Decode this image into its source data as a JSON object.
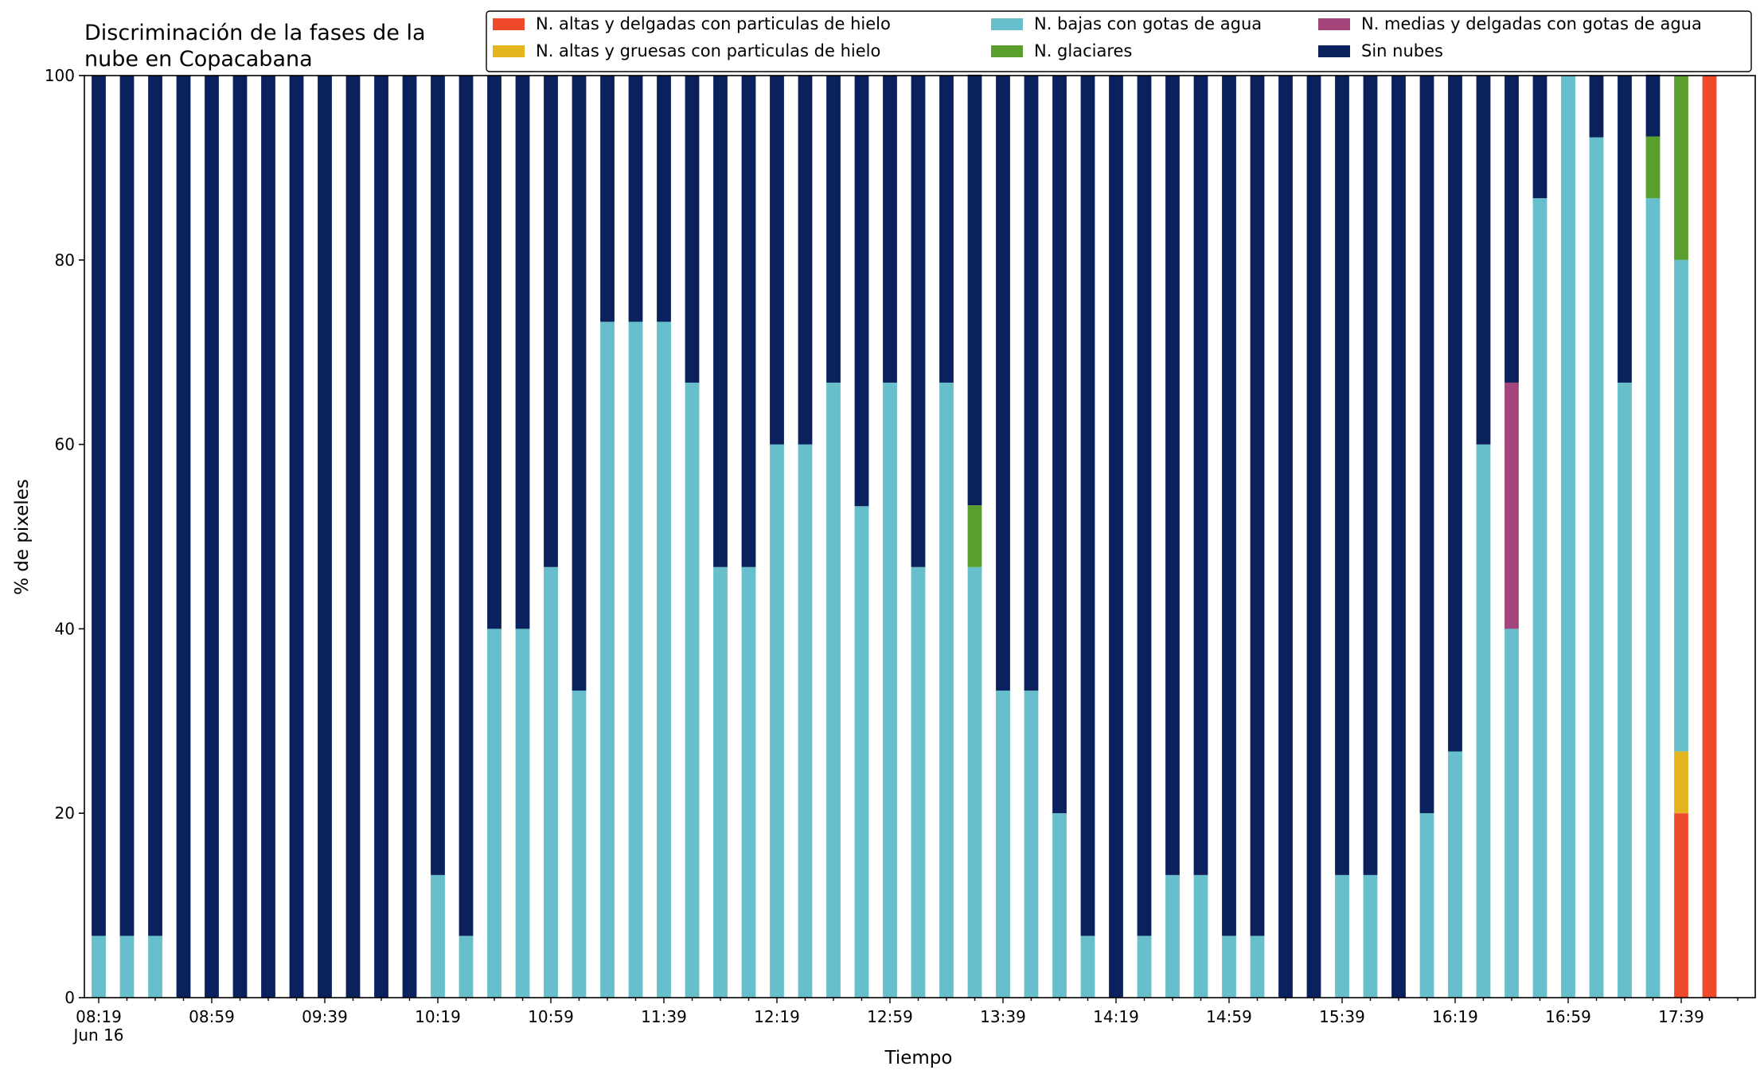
{
  "chart_data": {
    "type": "bar",
    "stacked": true,
    "title": "Discriminación de la fases de la\nnube en Copacabana",
    "xlabel": "Tiempo",
    "ylabel": "% de pixeles",
    "ylim": [
      0,
      100
    ],
    "yticks": [
      0,
      20,
      40,
      60,
      80,
      100
    ],
    "x_tick_labels": [
      "08:19",
      "08:59",
      "09:39",
      "10:19",
      "10:59",
      "11:39",
      "12:19",
      "12:59",
      "13:39",
      "14:19",
      "14:59",
      "15:39",
      "16:19",
      "16:59",
      "17:39"
    ],
    "x_date_label": "Jun 16",
    "grid": false,
    "legend_position": "top-right",
    "categories": [
      "08:19",
      "08:29",
      "08:39",
      "08:49",
      "08:59",
      "09:09",
      "09:19",
      "09:29",
      "09:39",
      "09:49",
      "09:59",
      "10:09",
      "10:19",
      "10:29",
      "10:39",
      "10:49",
      "10:59",
      "11:09",
      "11:19",
      "11:29",
      "11:39",
      "11:49",
      "11:59",
      "12:09",
      "12:19",
      "12:29",
      "12:39",
      "12:49",
      "12:59",
      "13:09",
      "13:19",
      "13:29",
      "13:39",
      "13:49",
      "13:59",
      "14:09",
      "14:19",
      "14:29",
      "14:39",
      "14:49",
      "14:59",
      "15:09",
      "15:19",
      "15:29",
      "15:39",
      "15:49",
      "15:59",
      "16:09",
      "16:19",
      "16:29",
      "16:39",
      "16:49",
      "16:59",
      "17:09",
      "17:19",
      "17:29",
      "17:39",
      "17:49"
    ],
    "series": [
      {
        "name": "N. altas y delgadas con particulas de hielo",
        "color": "#f04a2d",
        "values": [
          0,
          0,
          0,
          0,
          0,
          0,
          0,
          0,
          0,
          0,
          0,
          0,
          0,
          0,
          0,
          0,
          0,
          0,
          0,
          0,
          0,
          0,
          0,
          0,
          0,
          0,
          0,
          0,
          0,
          0,
          0,
          0,
          0,
          0,
          0,
          0,
          0,
          0,
          0,
          0,
          0,
          0,
          0,
          0,
          0,
          0,
          0,
          0,
          0,
          0,
          0,
          0,
          0,
          0,
          0,
          0,
          20,
          100
        ]
      },
      {
        "name": "N. altas y gruesas con particulas de hielo",
        "color": "#e4b51e",
        "values": [
          0,
          0,
          0,
          0,
          0,
          0,
          0,
          0,
          0,
          0,
          0,
          0,
          0,
          0,
          0,
          0,
          0,
          0,
          0,
          0,
          0,
          0,
          0,
          0,
          0,
          0,
          0,
          0,
          0,
          0,
          0,
          0,
          0,
          0,
          0,
          0,
          0,
          0,
          0,
          0,
          0,
          0,
          0,
          0,
          0,
          0,
          0,
          0,
          0,
          0,
          0,
          0,
          0,
          0,
          0,
          0,
          6.7,
          0
        ]
      },
      {
        "name": "N. bajas con gotas de agua",
        "color": "#67bfcb",
        "values": [
          6.7,
          6.7,
          6.7,
          0,
          0,
          0,
          0,
          0,
          0,
          0,
          0,
          0,
          13.3,
          6.7,
          40,
          40,
          46.7,
          33.3,
          73.3,
          73.3,
          73.3,
          66.7,
          46.7,
          46.7,
          60,
          60,
          66.7,
          53.3,
          66.7,
          46.7,
          66.7,
          46.7,
          33.3,
          33.3,
          20,
          6.7,
          0,
          6.7,
          13.3,
          13.3,
          6.7,
          6.7,
          0,
          0,
          13.3,
          13.3,
          0,
          20,
          26.7,
          60,
          40,
          86.7,
          100,
          93.3,
          66.7,
          86.7,
          53.3,
          0
        ]
      },
      {
        "name": "N. glaciares",
        "color": "#5a9f2e",
        "values": [
          0,
          0,
          0,
          0,
          0,
          0,
          0,
          0,
          0,
          0,
          0,
          0,
          0,
          0,
          0,
          0,
          0,
          0,
          0,
          0,
          0,
          0,
          0,
          0,
          0,
          0,
          0,
          0,
          0,
          0,
          0,
          6.7,
          0,
          0,
          0,
          0,
          0,
          0,
          0,
          0,
          0,
          0,
          0,
          0,
          0,
          0,
          0,
          0,
          0,
          0,
          0,
          0,
          0,
          0,
          0,
          6.7,
          20,
          0
        ]
      },
      {
        "name": "N. medias y delgadas con gotas de agua",
        "color": "#a3457a",
        "values": [
          0,
          0,
          0,
          0,
          0,
          0,
          0,
          0,
          0,
          0,
          0,
          0,
          0,
          0,
          0,
          0,
          0,
          0,
          0,
          0,
          0,
          0,
          0,
          0,
          0,
          0,
          0,
          0,
          0,
          0,
          0,
          0,
          0,
          0,
          0,
          0,
          0,
          0,
          0,
          0,
          0,
          0,
          0,
          0,
          0,
          0,
          0,
          0,
          0,
          0,
          26.7,
          0,
          0,
          0,
          0,
          0,
          0,
          0
        ]
      },
      {
        "name": "Sin nubes",
        "color": "#0a215e",
        "values": [
          93.3,
          93.3,
          93.3,
          100,
          100,
          100,
          100,
          100,
          100,
          100,
          100,
          100,
          86.7,
          93.3,
          60,
          60,
          53.3,
          66.7,
          26.7,
          26.7,
          26.7,
          33.3,
          53.3,
          53.3,
          40,
          40,
          33.3,
          46.7,
          33.3,
          53.3,
          33.3,
          46.7,
          66.7,
          66.7,
          80,
          93.3,
          100,
          93.3,
          86.7,
          86.7,
          93.3,
          93.3,
          100,
          100,
          86.7,
          86.7,
          100,
          80,
          73.3,
          40,
          33.3,
          13.3,
          0,
          6.7,
          33.3,
          6.7,
          0,
          0
        ]
      }
    ],
    "legend_order": [
      0,
      1,
      2,
      3,
      4,
      5
    ]
  }
}
